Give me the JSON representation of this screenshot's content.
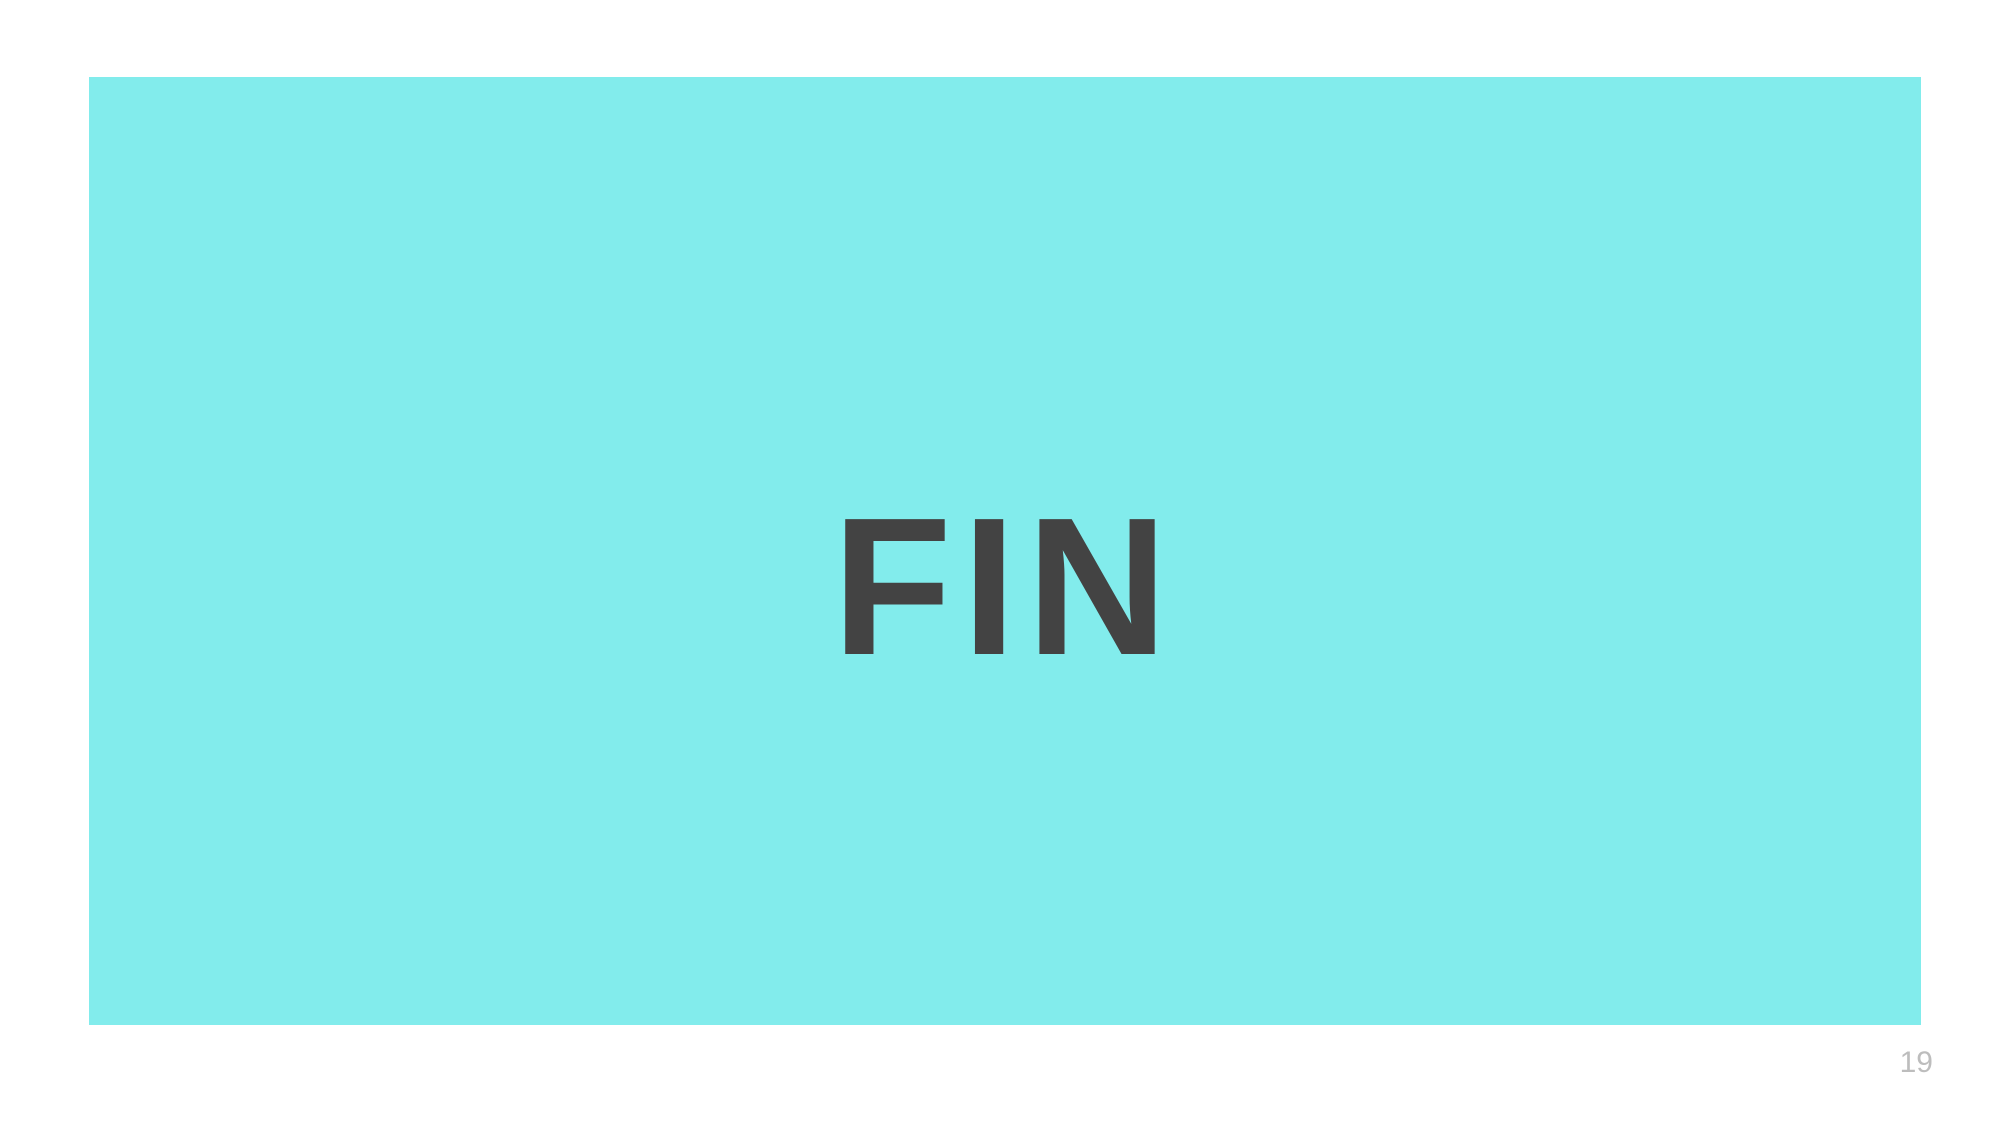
{
  "slide": {
    "title": "FIN",
    "page_number": "19"
  },
  "colors": {
    "panel": "#82ecec",
    "title": "#434343",
    "page_number": "#bdbdbd",
    "background": "#ffffff"
  }
}
